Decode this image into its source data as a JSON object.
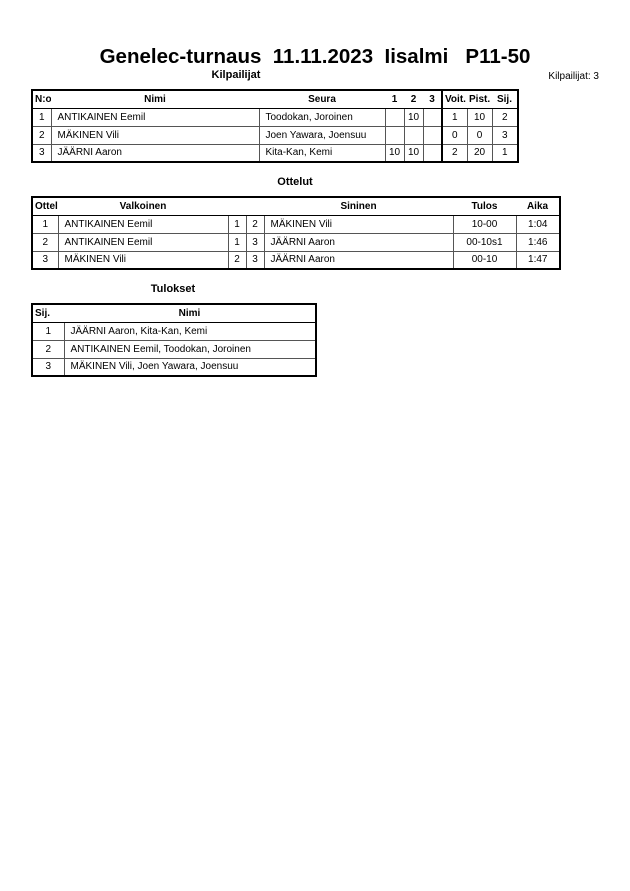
{
  "title": "Genelec-turnaus  11.11.2023  Iisalmi   P11-50",
  "competitors": {
    "heading": "Kilpailijat",
    "count_label": "Kilpailijat: 3",
    "headers": [
      "N:o",
      "Nimi",
      "Seura",
      "1",
      "2",
      "3",
      "Voit.",
      "Pist.",
      "Sij."
    ],
    "rows": [
      [
        "1",
        "ANTIKAINEN Eemil",
        "Toodokan, Joroinen",
        "",
        "10",
        "",
        "1",
        "10",
        "2"
      ],
      [
        "2",
        "MÄKINEN Vili",
        "Joen Yawara, Joensuu",
        "",
        "",
        "",
        "0",
        "0",
        "3"
      ],
      [
        "3",
        "JÄÄRNI Aaron",
        "Kita-Kan, Kemi",
        "10",
        "10",
        "",
        "2",
        "20",
        "1"
      ]
    ]
  },
  "matches": {
    "heading": "Ottelut",
    "headers": [
      "Ottelu",
      "Valkoinen",
      "",
      "",
      "Sininen",
      "Tulos",
      "Aika"
    ],
    "rows": [
      [
        "1",
        "ANTIKAINEN Eemil",
        "1",
        "2",
        "MÄKINEN Vili",
        "10-00",
        "1:04"
      ],
      [
        "2",
        "ANTIKAINEN Eemil",
        "1",
        "3",
        "JÄÄRNI Aaron",
        "00-10s1",
        "1:46"
      ],
      [
        "3",
        "MÄKINEN Vili",
        "2",
        "3",
        "JÄÄRNI Aaron",
        "00-10",
        "1:47"
      ]
    ]
  },
  "results": {
    "heading": "Tulokset",
    "headers": [
      "Sij.",
      "Nimi"
    ],
    "rows": [
      [
        "1",
        "JÄÄRNI Aaron, Kita-Kan, Kemi"
      ],
      [
        "2",
        "ANTIKAINEN Eemil, Toodokan, Joroinen"
      ],
      [
        "3",
        "MÄKINEN Vili, Joen Yawara, Joensuu"
      ]
    ]
  }
}
